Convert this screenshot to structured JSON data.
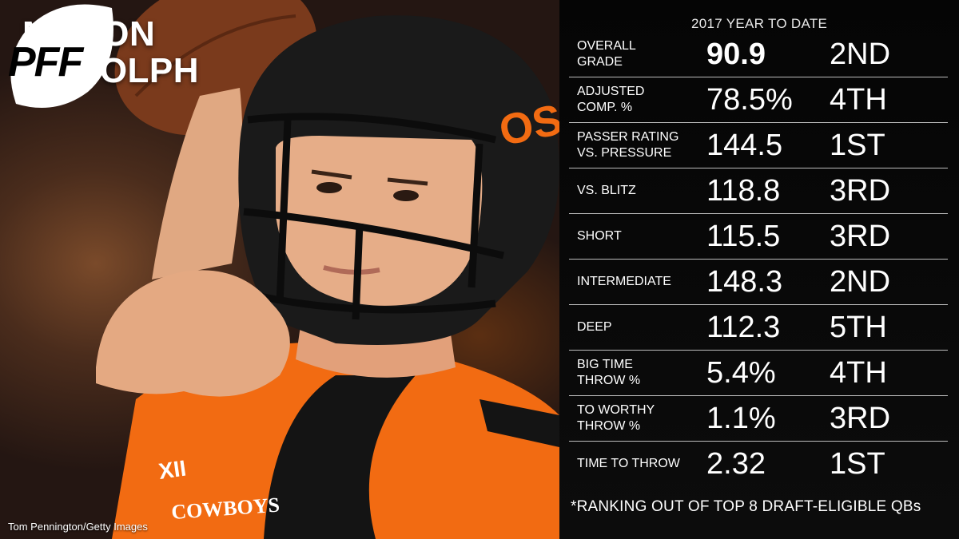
{
  "player": {
    "first_name": "MASON",
    "last_name": "RUDOLPH"
  },
  "logo": {
    "text": "PFF"
  },
  "photo": {
    "credit": "Tom Pennington/Getty Images",
    "helmet_logo": "OSU",
    "jersey_text": "COWBOYS",
    "conference_badge": "XII"
  },
  "stats": {
    "header": "2017 YEAR TO DATE",
    "rows": [
      {
        "label": "OVERALL\nGRADE",
        "value": "90.9",
        "rank": "2ND"
      },
      {
        "label": "ADJUSTED\nCOMP. %",
        "value": "78.5%",
        "rank": "4TH"
      },
      {
        "label": "PASSER RATING\nVS. PRESSURE",
        "value": "144.5",
        "rank": "1ST"
      },
      {
        "label": "VS. BLITZ",
        "value": "118.8",
        "rank": "3RD"
      },
      {
        "label": "SHORT",
        "value": "115.5",
        "rank": "3RD"
      },
      {
        "label": "INTERMEDIATE",
        "value": "148.3",
        "rank": "2ND"
      },
      {
        "label": "DEEP",
        "value": "112.3",
        "rank": "5TH"
      },
      {
        "label": "BIG TIME\nTHROW %",
        "value": "5.4%",
        "rank": "4TH"
      },
      {
        "label": "TO WORTHY\nTHROW %",
        "value": "1.1%",
        "rank": "3RD"
      },
      {
        "label": "TIME TO THROW",
        "value": "2.32",
        "rank": "1ST"
      }
    ],
    "footnote": "*RANKING OUT OF TOP 8 DRAFT-ELIGIBLE QBs"
  },
  "colors": {
    "jersey_orange": "#f26b12",
    "panel_background": "#080808",
    "divider": "#bdbdbd",
    "text": "#ffffff"
  }
}
